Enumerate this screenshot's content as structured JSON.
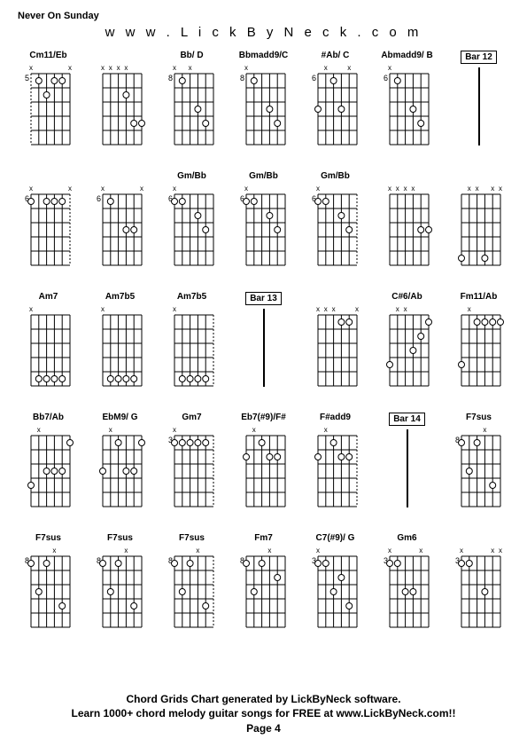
{
  "header": {
    "song_title": "Never On Sunday",
    "website": "w w w . L i c k B y N e c k . c o m"
  },
  "footer": {
    "line1": "Chord Grids Chart generated by LickByNeck software.",
    "line2": "Learn 1000+ chord melody guitar songs for FREE at www.LickByNeck.com!!",
    "page": "Page 4"
  },
  "style": {
    "background": "#ffffff",
    "text_color": "#000000",
    "grid_color": "#000000",
    "dot_fill": "#ffffff",
    "dot_stroke": "#000000",
    "fretboard_width": 44,
    "fretboard_height": 80,
    "strings": 6,
    "frets": 5,
    "chord_font_size": 10,
    "title_font_size": 11,
    "website_font_size": 15,
    "footer_font_size": 12,
    "dot_radius": 3.5
  },
  "rows": [
    [
      {
        "type": "chord",
        "name": "Cm11/Eb",
        "fret": "5",
        "mutes": [
          "x",
          "",
          "",
          "",
          "",
          "x"
        ],
        "dashed_left": true,
        "dots": [
          {
            "s": 1,
            "f": 1
          },
          {
            "s": 3,
            "f": 1
          },
          {
            "s": 4,
            "f": 1
          },
          {
            "s": 2,
            "f": 2
          }
        ]
      },
      {
        "type": "chord",
        "name": "",
        "fret": "",
        "mutes": [
          "x",
          "x",
          "x",
          "x",
          "",
          ""
        ],
        "dots": [
          {
            "s": 3,
            "f": 2
          },
          {
            "s": 4,
            "f": 4
          },
          {
            "s": 5,
            "f": 4
          }
        ]
      },
      {
        "type": "chord",
        "name": "Bb/ D",
        "fret": "8",
        "mutes": [
          "x",
          "",
          "x",
          "",
          "",
          ""
        ],
        "dots": [
          {
            "s": 1,
            "f": 1
          },
          {
            "s": 3,
            "f": 3
          },
          {
            "s": 4,
            "f": 4
          }
        ]
      },
      {
        "type": "chord",
        "name": "Bbmadd9/C",
        "fret": "8",
        "mutes": [
          "x",
          "",
          "",
          "",
          "",
          ""
        ],
        "dots": [
          {
            "s": 1,
            "f": 1
          },
          {
            "s": 3,
            "f": 3
          },
          {
            "s": 4,
            "f": 4
          }
        ]
      },
      {
        "type": "chord",
        "name": "#Ab/ C",
        "fret": "6",
        "mutes": [
          "",
          "x",
          "",
          "",
          "x",
          ""
        ],
        "dots": [
          {
            "s": 2,
            "f": 1
          },
          {
            "s": 0,
            "f": 3
          },
          {
            "s": 3,
            "f": 3
          }
        ]
      },
      {
        "type": "chord",
        "name": "Abmadd9/ B",
        "fret": "6",
        "mutes": [
          "x",
          "",
          "",
          "",
          "",
          ""
        ],
        "dots": [
          {
            "s": 1,
            "f": 1
          },
          {
            "s": 3,
            "f": 3
          },
          {
            "s": 4,
            "f": 4
          }
        ]
      },
      {
        "type": "bar",
        "label": "Bar 12"
      }
    ],
    [
      {
        "type": "chord",
        "name": "",
        "fret": "6",
        "mutes": [
          "x",
          "",
          "",
          "",
          "",
          "x"
        ],
        "dashed_right": true,
        "dots": [
          {
            "s": 0,
            "f": 1
          },
          {
            "s": 2,
            "f": 1
          },
          {
            "s": 3,
            "f": 1
          },
          {
            "s": 4,
            "f": 1
          }
        ]
      },
      {
        "type": "chord",
        "name": "",
        "fret": "6",
        "mutes": [
          "x",
          "",
          "",
          "",
          "",
          "x"
        ],
        "dots": [
          {
            "s": 1,
            "f": 1
          },
          {
            "s": 3,
            "f": 3
          },
          {
            "s": 4,
            "f": 3
          }
        ]
      },
      {
        "type": "chord",
        "name": "Gm/Bb",
        "fret": "6",
        "mutes": [
          "x",
          "",
          "",
          "",
          "",
          ""
        ],
        "dots": [
          {
            "s": 0,
            "f": 1
          },
          {
            "s": 1,
            "f": 1
          },
          {
            "s": 3,
            "f": 2
          },
          {
            "s": 4,
            "f": 3
          }
        ]
      },
      {
        "type": "chord",
        "name": "Gm/Bb",
        "fret": "6",
        "mutes": [
          "x",
          "",
          "",
          "",
          "",
          ""
        ],
        "dots": [
          {
            "s": 0,
            "f": 1
          },
          {
            "s": 1,
            "f": 1
          },
          {
            "s": 3,
            "f": 2
          },
          {
            "s": 4,
            "f": 3
          }
        ]
      },
      {
        "type": "chord",
        "name": "Gm/Bb",
        "fret": "6",
        "mutes": [
          "x",
          "",
          "",
          "",
          "",
          ""
        ],
        "dashed_right": true,
        "dots": [
          {
            "s": 0,
            "f": 1
          },
          {
            "s": 1,
            "f": 1
          },
          {
            "s": 3,
            "f": 2
          },
          {
            "s": 4,
            "f": 3
          }
        ]
      },
      {
        "type": "chord",
        "name": "",
        "fret": "",
        "mutes": [
          "x",
          "x",
          "x",
          "x",
          "",
          ""
        ],
        "dots": [
          {
            "s": 4,
            "f": 3
          },
          {
            "s": 5,
            "f": 3
          }
        ]
      },
      {
        "type": "chord",
        "name": "",
        "fret": "",
        "mutes": [
          "",
          "x",
          "x",
          "",
          "x",
          "x"
        ],
        "dots": [
          {
            "s": 0,
            "f": 5
          },
          {
            "s": 3,
            "f": 5
          }
        ]
      }
    ],
    [
      {
        "type": "chord",
        "name": "Am7",
        "fret": "",
        "mutes": [
          "x",
          "",
          "",
          "",
          "",
          ""
        ],
        "dots": [
          {
            "s": 1,
            "f": 5
          },
          {
            "s": 2,
            "f": 5
          },
          {
            "s": 3,
            "f": 5
          },
          {
            "s": 4,
            "f": 5
          }
        ]
      },
      {
        "type": "chord",
        "name": "Am7b5",
        "fret": "",
        "mutes": [
          "x",
          "",
          "",
          "",
          "",
          ""
        ],
        "dots": [
          {
            "s": 1,
            "f": 5
          },
          {
            "s": 2,
            "f": 5
          },
          {
            "s": 3,
            "f": 5
          },
          {
            "s": 4,
            "f": 5
          }
        ]
      },
      {
        "type": "chord",
        "name": "Am7b5",
        "fret": "",
        "mutes": [
          "x",
          "",
          "",
          "",
          "",
          ""
        ],
        "dashed_right": true,
        "dots": [
          {
            "s": 1,
            "f": 5
          },
          {
            "s": 2,
            "f": 5
          },
          {
            "s": 3,
            "f": 5
          },
          {
            "s": 4,
            "f": 5
          }
        ]
      },
      {
        "type": "bar",
        "label": "Bar 13"
      },
      {
        "type": "chord",
        "name": "",
        "fret": "",
        "mutes": [
          "x",
          "x",
          "x",
          "",
          "",
          "x"
        ],
        "dots": [
          {
            "s": 3,
            "f": 1
          },
          {
            "s": 4,
            "f": 1
          }
        ]
      },
      {
        "type": "chord",
        "name": "C#6/Ab",
        "fret": "",
        "mutes": [
          "",
          "x",
          "x",
          "",
          "",
          ""
        ],
        "dots": [
          {
            "s": 0,
            "f": 4
          },
          {
            "s": 3,
            "f": 3
          },
          {
            "s": 4,
            "f": 2
          },
          {
            "s": 5,
            "f": 1
          }
        ]
      },
      {
        "type": "chord",
        "name": "Fm11/Ab",
        "fret": "",
        "mutes": [
          "",
          "x",
          "",
          "",
          "",
          ""
        ],
        "dots": [
          {
            "s": 0,
            "f": 4
          },
          {
            "s": 2,
            "f": 1
          },
          {
            "s": 3,
            "f": 1
          },
          {
            "s": 4,
            "f": 1
          },
          {
            "s": 5,
            "f": 1
          }
        ]
      }
    ],
    [
      {
        "type": "chord",
        "name": "Bb7/Ab",
        "fret": "",
        "mutes": [
          "",
          "x",
          "",
          "",
          "",
          ""
        ],
        "dots": [
          {
            "s": 0,
            "f": 4
          },
          {
            "s": 2,
            "f": 3
          },
          {
            "s": 3,
            "f": 3
          },
          {
            "s": 4,
            "f": 3
          },
          {
            "s": 5,
            "f": 1
          }
        ]
      },
      {
        "type": "chord",
        "name": "EbM9/ G",
        "fret": "",
        "mutes": [
          "",
          "x",
          "",
          "",
          "",
          ""
        ],
        "dots": [
          {
            "s": 0,
            "f": 3
          },
          {
            "s": 2,
            "f": 1
          },
          {
            "s": 3,
            "f": 3
          },
          {
            "s": 4,
            "f": 3
          },
          {
            "s": 5,
            "f": 1
          }
        ]
      },
      {
        "type": "chord",
        "name": "Gm7",
        "fret": "3",
        "mutes": [
          "x",
          "",
          "",
          "",
          "",
          ""
        ],
        "dashed_right": true,
        "dots": [
          {
            "s": 0,
            "f": 1
          },
          {
            "s": 1,
            "f": 1
          },
          {
            "s": 2,
            "f": 1
          },
          {
            "s": 3,
            "f": 1
          },
          {
            "s": 4,
            "f": 1
          }
        ]
      },
      {
        "type": "chord",
        "name": "Eb7(#9)/F#",
        "fret": "",
        "mutes": [
          "",
          "x",
          "",
          "",
          "",
          ""
        ],
        "dots": [
          {
            "s": 0,
            "f": 2
          },
          {
            "s": 2,
            "f": 1
          },
          {
            "s": 3,
            "f": 2
          },
          {
            "s": 4,
            "f": 2
          }
        ]
      },
      {
        "type": "chord",
        "name": "F#add9",
        "fret": "",
        "mutes": [
          "",
          "x",
          "",
          "",
          "",
          ""
        ],
        "dashed_right": true,
        "dots": [
          {
            "s": 0,
            "f": 2
          },
          {
            "s": 2,
            "f": 1
          },
          {
            "s": 3,
            "f": 2
          },
          {
            "s": 4,
            "f": 2
          }
        ]
      },
      {
        "type": "bar",
        "label": "Bar 14"
      },
      {
        "type": "chord",
        "name": "F7sus",
        "fret": "8",
        "mutes": [
          "",
          "",
          "",
          "x",
          "",
          ""
        ],
        "dots": [
          {
            "s": 0,
            "f": 1
          },
          {
            "s": 1,
            "f": 3
          },
          {
            "s": 2,
            "f": 1
          },
          {
            "s": 4,
            "f": 4
          }
        ]
      }
    ],
    [
      {
        "type": "chord",
        "name": "F7sus",
        "fret": "8",
        "mutes": [
          "",
          "",
          "",
          "x",
          "",
          ""
        ],
        "dots": [
          {
            "s": 0,
            "f": 1
          },
          {
            "s": 1,
            "f": 3
          },
          {
            "s": 2,
            "f": 1
          },
          {
            "s": 4,
            "f": 4
          }
        ]
      },
      {
        "type": "chord",
        "name": "F7sus",
        "fret": "8",
        "mutes": [
          "",
          "",
          "",
          "x",
          "",
          ""
        ],
        "dots": [
          {
            "s": 0,
            "f": 1
          },
          {
            "s": 1,
            "f": 3
          },
          {
            "s": 2,
            "f": 1
          },
          {
            "s": 4,
            "f": 4
          }
        ]
      },
      {
        "type": "chord",
        "name": "F7sus",
        "fret": "8",
        "mutes": [
          "",
          "",
          "",
          "x",
          "",
          ""
        ],
        "dashed_right": true,
        "dots": [
          {
            "s": 0,
            "f": 1
          },
          {
            "s": 1,
            "f": 3
          },
          {
            "s": 2,
            "f": 1
          },
          {
            "s": 4,
            "f": 4
          }
        ]
      },
      {
        "type": "chord",
        "name": "Fm7",
        "fret": "8",
        "mutes": [
          "",
          "",
          "",
          "x",
          "",
          ""
        ],
        "dots": [
          {
            "s": 0,
            "f": 1
          },
          {
            "s": 1,
            "f": 3
          },
          {
            "s": 2,
            "f": 1
          },
          {
            "s": 4,
            "f": 2
          }
        ]
      },
      {
        "type": "chord",
        "name": "C7(#9)/ G",
        "fret": "3",
        "mutes": [
          "x",
          "",
          "",
          "",
          "",
          ""
        ],
        "dots": [
          {
            "s": 0,
            "f": 1
          },
          {
            "s": 1,
            "f": 1
          },
          {
            "s": 2,
            "f": 3
          },
          {
            "s": 3,
            "f": 2
          },
          {
            "s": 4,
            "f": 4
          }
        ]
      },
      {
        "type": "chord",
        "name": "Gm6",
        "fret": "3",
        "mutes": [
          "x",
          "",
          "",
          "",
          "x",
          ""
        ],
        "dots": [
          {
            "s": 0,
            "f": 1
          },
          {
            "s": 1,
            "f": 1
          },
          {
            "s": 2,
            "f": 3
          },
          {
            "s": 3,
            "f": 3
          }
        ]
      },
      {
        "type": "chord",
        "name": "",
        "fret": "3",
        "mutes": [
          "x",
          "",
          "",
          "",
          "x",
          "x"
        ],
        "dots": [
          {
            "s": 0,
            "f": 1
          },
          {
            "s": 1,
            "f": 1
          },
          {
            "s": 3,
            "f": 3
          }
        ]
      }
    ]
  ]
}
